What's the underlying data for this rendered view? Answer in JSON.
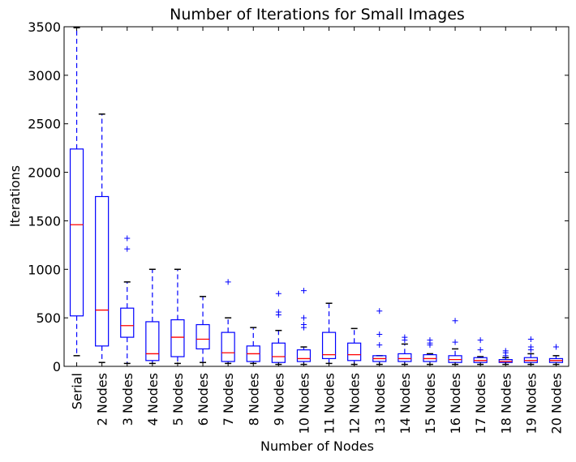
{
  "chart_data": {
    "type": "box",
    "title": "Number of Iterations for Small Images",
    "xlabel": "Number of Nodes",
    "ylabel": "Iterations",
    "ylim": [
      0,
      3500
    ],
    "yticks": [
      "0",
      "500",
      "1000",
      "1500",
      "2000",
      "2500",
      "3000",
      "3500"
    ],
    "grid": false,
    "colors": {
      "box": "#0000ff",
      "median": "#ff0000",
      "outlier": "#0000ff",
      "frame": "#000000"
    },
    "categories": [
      "Serial",
      "2 Nodes",
      "3 Nodes",
      "4 Nodes",
      "5 Nodes",
      "6 Nodes",
      "7 Nodes",
      "8 Nodes",
      "9 Nodes",
      "10 Nodes",
      "11 Nodes",
      "12 Nodes",
      "13 Nodes",
      "14 Nodes",
      "15 Nodes",
      "16 Nodes",
      "17 Nodes",
      "18 Nodes",
      "19 Nodes",
      "20 Nodes"
    ],
    "boxes": [
      {
        "whislo": 110,
        "q1": 520,
        "med": 1460,
        "q3": 2240,
        "whishi": 3490,
        "fliers": []
      },
      {
        "whislo": 40,
        "q1": 210,
        "med": 580,
        "q3": 1750,
        "whishi": 2600,
        "fliers": []
      },
      {
        "whislo": 30,
        "q1": 300,
        "med": 420,
        "q3": 600,
        "whishi": 870,
        "fliers": [
          1210,
          1320
        ]
      },
      {
        "whislo": 30,
        "q1": 60,
        "med": 130,
        "q3": 460,
        "whishi": 1000,
        "fliers": []
      },
      {
        "whislo": 30,
        "q1": 100,
        "med": 300,
        "q3": 480,
        "whishi": 1000,
        "fliers": []
      },
      {
        "whislo": 40,
        "q1": 180,
        "med": 280,
        "q3": 430,
        "whishi": 720,
        "fliers": []
      },
      {
        "whislo": 30,
        "q1": 50,
        "med": 140,
        "q3": 350,
        "whishi": 500,
        "fliers": [
          870
        ]
      },
      {
        "whislo": 30,
        "q1": 50,
        "med": 130,
        "q3": 210,
        "whishi": 400,
        "fliers": []
      },
      {
        "whislo": 20,
        "q1": 40,
        "med": 100,
        "q3": 240,
        "whishi": 370,
        "fliers": [
          530,
          560,
          750
        ]
      },
      {
        "whislo": 20,
        "q1": 50,
        "med": 80,
        "q3": 170,
        "whishi": 200,
        "fliers": [
          400,
          430,
          500,
          780
        ]
      },
      {
        "whislo": 30,
        "q1": 80,
        "med": 120,
        "q3": 350,
        "whishi": 650,
        "fliers": []
      },
      {
        "whislo": 20,
        "q1": 60,
        "med": 120,
        "q3": 240,
        "whishi": 390,
        "fliers": []
      },
      {
        "whislo": 20,
        "q1": 50,
        "med": 80,
        "q3": 110,
        "whishi": 110,
        "fliers": [
          220,
          330,
          570
        ]
      },
      {
        "whislo": 20,
        "q1": 50,
        "med": 80,
        "q3": 130,
        "whishi": 230,
        "fliers": [
          270,
          300
        ]
      },
      {
        "whislo": 20,
        "q1": 50,
        "med": 80,
        "q3": 120,
        "whishi": 130,
        "fliers": [
          220,
          240,
          270
        ]
      },
      {
        "whislo": 20,
        "q1": 40,
        "med": 70,
        "q3": 110,
        "whishi": 180,
        "fliers": [
          250,
          470
        ]
      },
      {
        "whislo": 20,
        "q1": 40,
        "med": 60,
        "q3": 90,
        "whishi": 100,
        "fliers": [
          170,
          270
        ]
      },
      {
        "whislo": 20,
        "q1": 40,
        "med": 50,
        "q3": 70,
        "whishi": 90,
        "fliers": [
          110,
          140,
          160
        ]
      },
      {
        "whislo": 20,
        "q1": 40,
        "med": 60,
        "q3": 90,
        "whishi": 130,
        "fliers": [
          170,
          200,
          280
        ]
      },
      {
        "whislo": 20,
        "q1": 40,
        "med": 60,
        "q3": 80,
        "whishi": 110,
        "fliers": [
          200
        ]
      }
    ]
  }
}
